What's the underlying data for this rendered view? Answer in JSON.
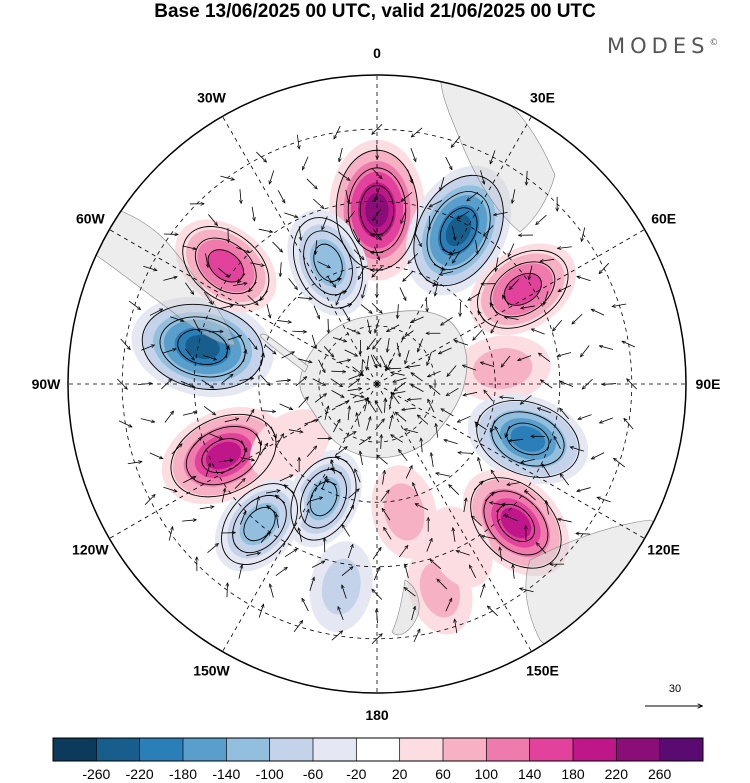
{
  "title": "Base 13/06/2025 00 UTC, valid 21/06/2025 00 UTC",
  "brand": "MODES",
  "brand_mark": "©",
  "longitude_labels": [
    {
      "text": "0",
      "lon": 0
    },
    {
      "text": "30E",
      "lon": 30
    },
    {
      "text": "60E",
      "lon": 60
    },
    {
      "text": "90E",
      "lon": 90
    },
    {
      "text": "120E",
      "lon": 120
    },
    {
      "text": "150E",
      "lon": 150
    },
    {
      "text": "180",
      "lon": 180
    },
    {
      "text": "150W",
      "lon": -150
    },
    {
      "text": "120W",
      "lon": -120
    },
    {
      "text": "90W",
      "lon": -90
    },
    {
      "text": "60W",
      "lon": -60
    },
    {
      "text": "30W",
      "lon": -30
    }
  ],
  "reference_vector": {
    "label": "30"
  },
  "colorbar": {
    "labels": [
      "-260",
      "-220",
      "-180",
      "-140",
      "-100",
      "-60",
      "-20",
      "20",
      "60",
      "100",
      "140",
      "180",
      "220",
      "260"
    ],
    "colors": [
      "#0b3a5b",
      "#175e8c",
      "#2b7fb8",
      "#5a9fcc",
      "#93bfdf",
      "#c4d3e9",
      "#e5e8f2",
      "#ffffff",
      "#fbdde2",
      "#f6b1c4",
      "#ef7bad",
      "#e2419c",
      "#bf1689",
      "#8b0d78",
      "#5a0b72"
    ]
  },
  "map_data": {
    "projection": "south polar stereographic",
    "anomalies": [
      {
        "lon": 0,
        "lat": -47,
        "value": 240
      },
      {
        "lon": 28,
        "lat": -47,
        "value": -230
      },
      {
        "lon": 57,
        "lat": -47,
        "value": 150
      },
      {
        "lon": 83,
        "lat": -58,
        "value": 80
      },
      {
        "lon": 110,
        "lat": -50,
        "value": -180
      },
      {
        "lon": 135,
        "lat": -42,
        "value": 180
      },
      {
        "lon": 163,
        "lat": -38,
        "value": 60
      },
      {
        "lon": 168,
        "lat": -57,
        "value": 70
      },
      {
        "lon": 153,
        "lat": -45,
        "value": 40
      },
      {
        "lon": -155,
        "lat": -58,
        "value": -100
      },
      {
        "lon": -140,
        "lat": -45,
        "value": -120
      },
      {
        "lon": -115,
        "lat": -48,
        "value": 200
      },
      {
        "lon": -78,
        "lat": -46,
        "value": -250
      },
      {
        "lon": -52,
        "lat": -43,
        "value": 140
      },
      {
        "lon": -22,
        "lat": -57,
        "value": -130
      },
      {
        "lon": -125,
        "lat": -63,
        "value": 50
      },
      {
        "lon": -170,
        "lat": -40,
        "value": -60
      }
    ]
  }
}
